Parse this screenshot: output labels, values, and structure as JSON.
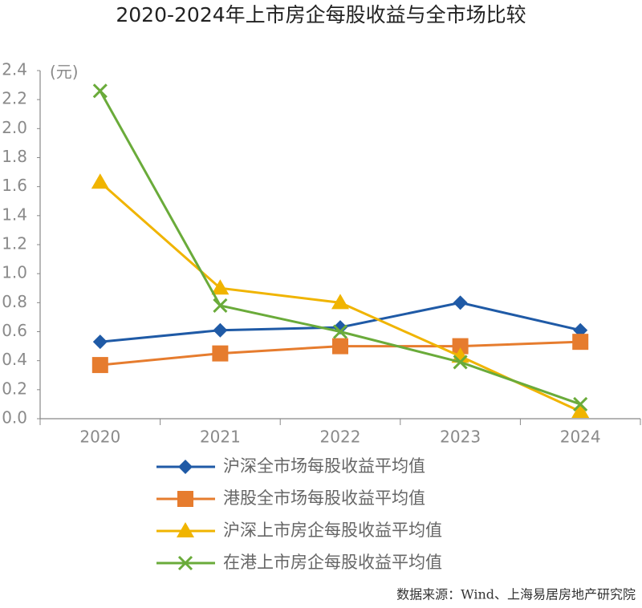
{
  "chart_data": {
    "type": "line",
    "title": "2020-2024年上市房企每股收益与全市场比较",
    "y_unit": "(元)",
    "source": "数据来源：Wind、上海易居房地产研究院",
    "categories": [
      "2020",
      "2021",
      "2022",
      "2023",
      "2024"
    ],
    "series": [
      {
        "name": "沪深全市场每股收益平均值",
        "color": "#1f5aa6",
        "marker": "diamond",
        "values": [
          0.53,
          0.61,
          0.63,
          0.8,
          0.61
        ]
      },
      {
        "name": "港股全市场每股收益平均值",
        "color": "#e67c2e",
        "marker": "square",
        "values": [
          0.37,
          0.45,
          0.5,
          0.5,
          0.53
        ]
      },
      {
        "name": "沪深上市房企每股收益平均值",
        "color": "#f0b400",
        "marker": "triangle",
        "values": [
          1.63,
          0.9,
          0.8,
          0.43,
          0.05
        ]
      },
      {
        "name": "在港上市房企每股收益平均值",
        "color": "#6aab3a",
        "marker": "x",
        "values": [
          2.26,
          0.78,
          0.6,
          0.39,
          0.1
        ]
      }
    ],
    "ylim": [
      0,
      2.4
    ],
    "yticks": [
      {
        "value": 0,
        "label": "0.0"
      },
      0.2,
      0.4,
      0.6,
      0.8,
      {
        "value": 1,
        "label": "1.0"
      },
      1.2,
      1.4,
      1.6,
      1.8,
      {
        "value": 2,
        "label": "2.0"
      },
      2.2,
      2.4
    ],
    "grid": false
  }
}
